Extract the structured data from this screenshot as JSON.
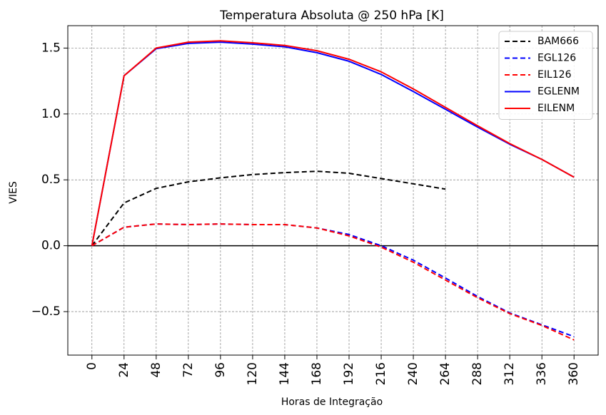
{
  "chart_data": {
    "type": "line",
    "title": "Temperatura Absoluta @ 250 hPa [K]",
    "xlabel": "Horas de Integração",
    "ylabel": "VIES",
    "x_ticks": [
      0,
      24,
      48,
      72,
      96,
      120,
      144,
      168,
      192,
      216,
      240,
      264,
      288,
      312,
      336,
      360
    ],
    "y_ticks": [
      -0.5,
      0.0,
      0.5,
      1.0,
      1.5
    ],
    "y_tick_labels": [
      "−0.5",
      "0.0",
      "0.5",
      "1.0",
      "1.5"
    ],
    "xlim": [
      -18,
      378
    ],
    "ylim": [
      -0.83,
      1.67
    ],
    "grid": true,
    "zero_line": true,
    "legend_position": "top-right",
    "series": [
      {
        "name": "BAM666",
        "color": "#000000",
        "style": "dashed",
        "x": [
          0,
          24,
          48,
          72,
          96,
          120,
          144,
          168,
          192,
          216,
          240,
          264
        ],
        "values": [
          0.0,
          0.325,
          0.435,
          0.485,
          0.515,
          0.54,
          0.555,
          0.565,
          0.55,
          0.51,
          0.47,
          0.43
        ]
      },
      {
        "name": "EGL126",
        "color": "#0000ff",
        "style": "dashed",
        "x": [
          0,
          24,
          48,
          72,
          96,
          120,
          144,
          168,
          192,
          216,
          240,
          264,
          288,
          312,
          336,
          360
        ],
        "values": [
          0.0,
          0.14,
          0.165,
          0.16,
          0.165,
          0.16,
          0.16,
          0.135,
          0.085,
          0.0,
          -0.11,
          -0.245,
          -0.385,
          -0.51,
          -0.6,
          -0.69
        ]
      },
      {
        "name": "EIL126",
        "color": "#ff0000",
        "style": "dashed",
        "x": [
          0,
          24,
          48,
          72,
          96,
          120,
          144,
          168,
          192,
          216,
          240,
          264,
          288,
          312,
          336,
          360
        ],
        "values": [
          0.0,
          0.14,
          0.165,
          0.16,
          0.165,
          0.16,
          0.16,
          0.135,
          0.075,
          -0.01,
          -0.125,
          -0.26,
          -0.395,
          -0.515,
          -0.605,
          -0.715
        ]
      },
      {
        "name": "EGLENM",
        "color": "#0000ff",
        "style": "solid",
        "x": [
          0,
          24,
          48,
          72,
          96,
          120,
          144,
          168,
          192,
          216,
          240,
          264,
          288,
          312,
          336,
          360
        ],
        "values": [
          0.0,
          1.29,
          1.495,
          1.535,
          1.545,
          1.53,
          1.51,
          1.465,
          1.4,
          1.3,
          1.17,
          1.035,
          0.9,
          0.77,
          0.655,
          0.52
        ]
      },
      {
        "name": "EILENM",
        "color": "#ff0000",
        "style": "solid",
        "x": [
          0,
          24,
          48,
          72,
          96,
          120,
          144,
          168,
          192,
          216,
          240,
          264,
          288,
          312,
          336,
          360
        ],
        "values": [
          0.0,
          1.29,
          1.5,
          1.545,
          1.555,
          1.54,
          1.52,
          1.48,
          1.415,
          1.32,
          1.19,
          1.05,
          0.91,
          0.775,
          0.655,
          0.52
        ]
      }
    ]
  }
}
